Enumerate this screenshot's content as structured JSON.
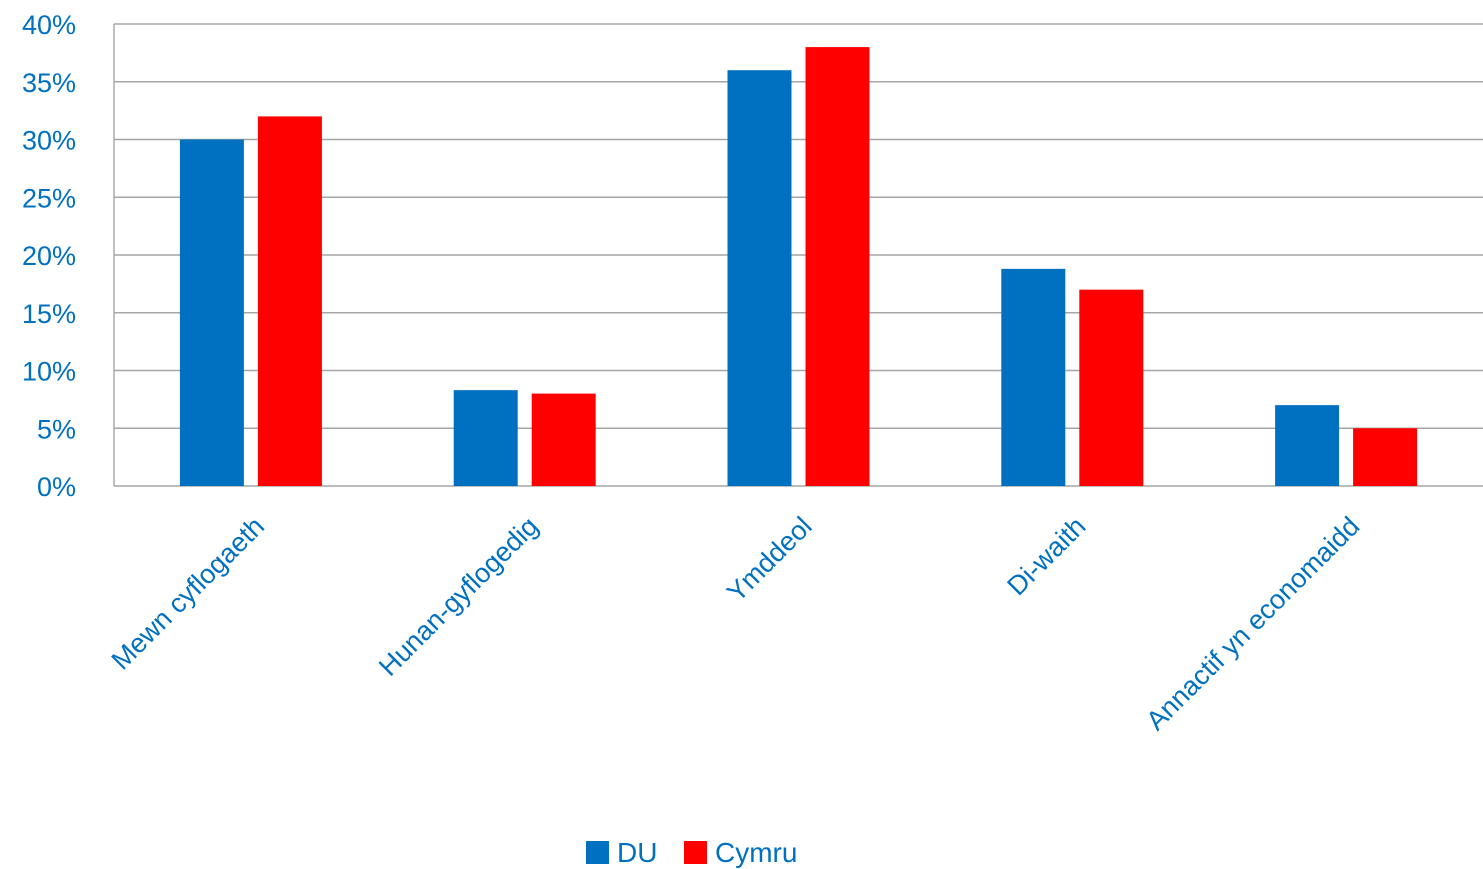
{
  "chart_data": {
    "type": "bar",
    "categories": [
      "Mewn cyflogaeth",
      "Hunan-gyflogedig",
      "Ymddeol",
      "Di-waith",
      "Annactif yn economaidd"
    ],
    "series": [
      {
        "name": "DU",
        "color": "#0070c0",
        "values": [
          30,
          8.3,
          36,
          18.8,
          7
        ]
      },
      {
        "name": "Cymru",
        "color": "#ff0000",
        "values": [
          32,
          8,
          38,
          17,
          5
        ]
      }
    ],
    "yticks": [
      "0%",
      "5%",
      "10%",
      "15%",
      "20%",
      "25%",
      "30%",
      "35%",
      "40%"
    ],
    "ylim": [
      0,
      40
    ],
    "grid": true,
    "legend_position": "bottom"
  }
}
